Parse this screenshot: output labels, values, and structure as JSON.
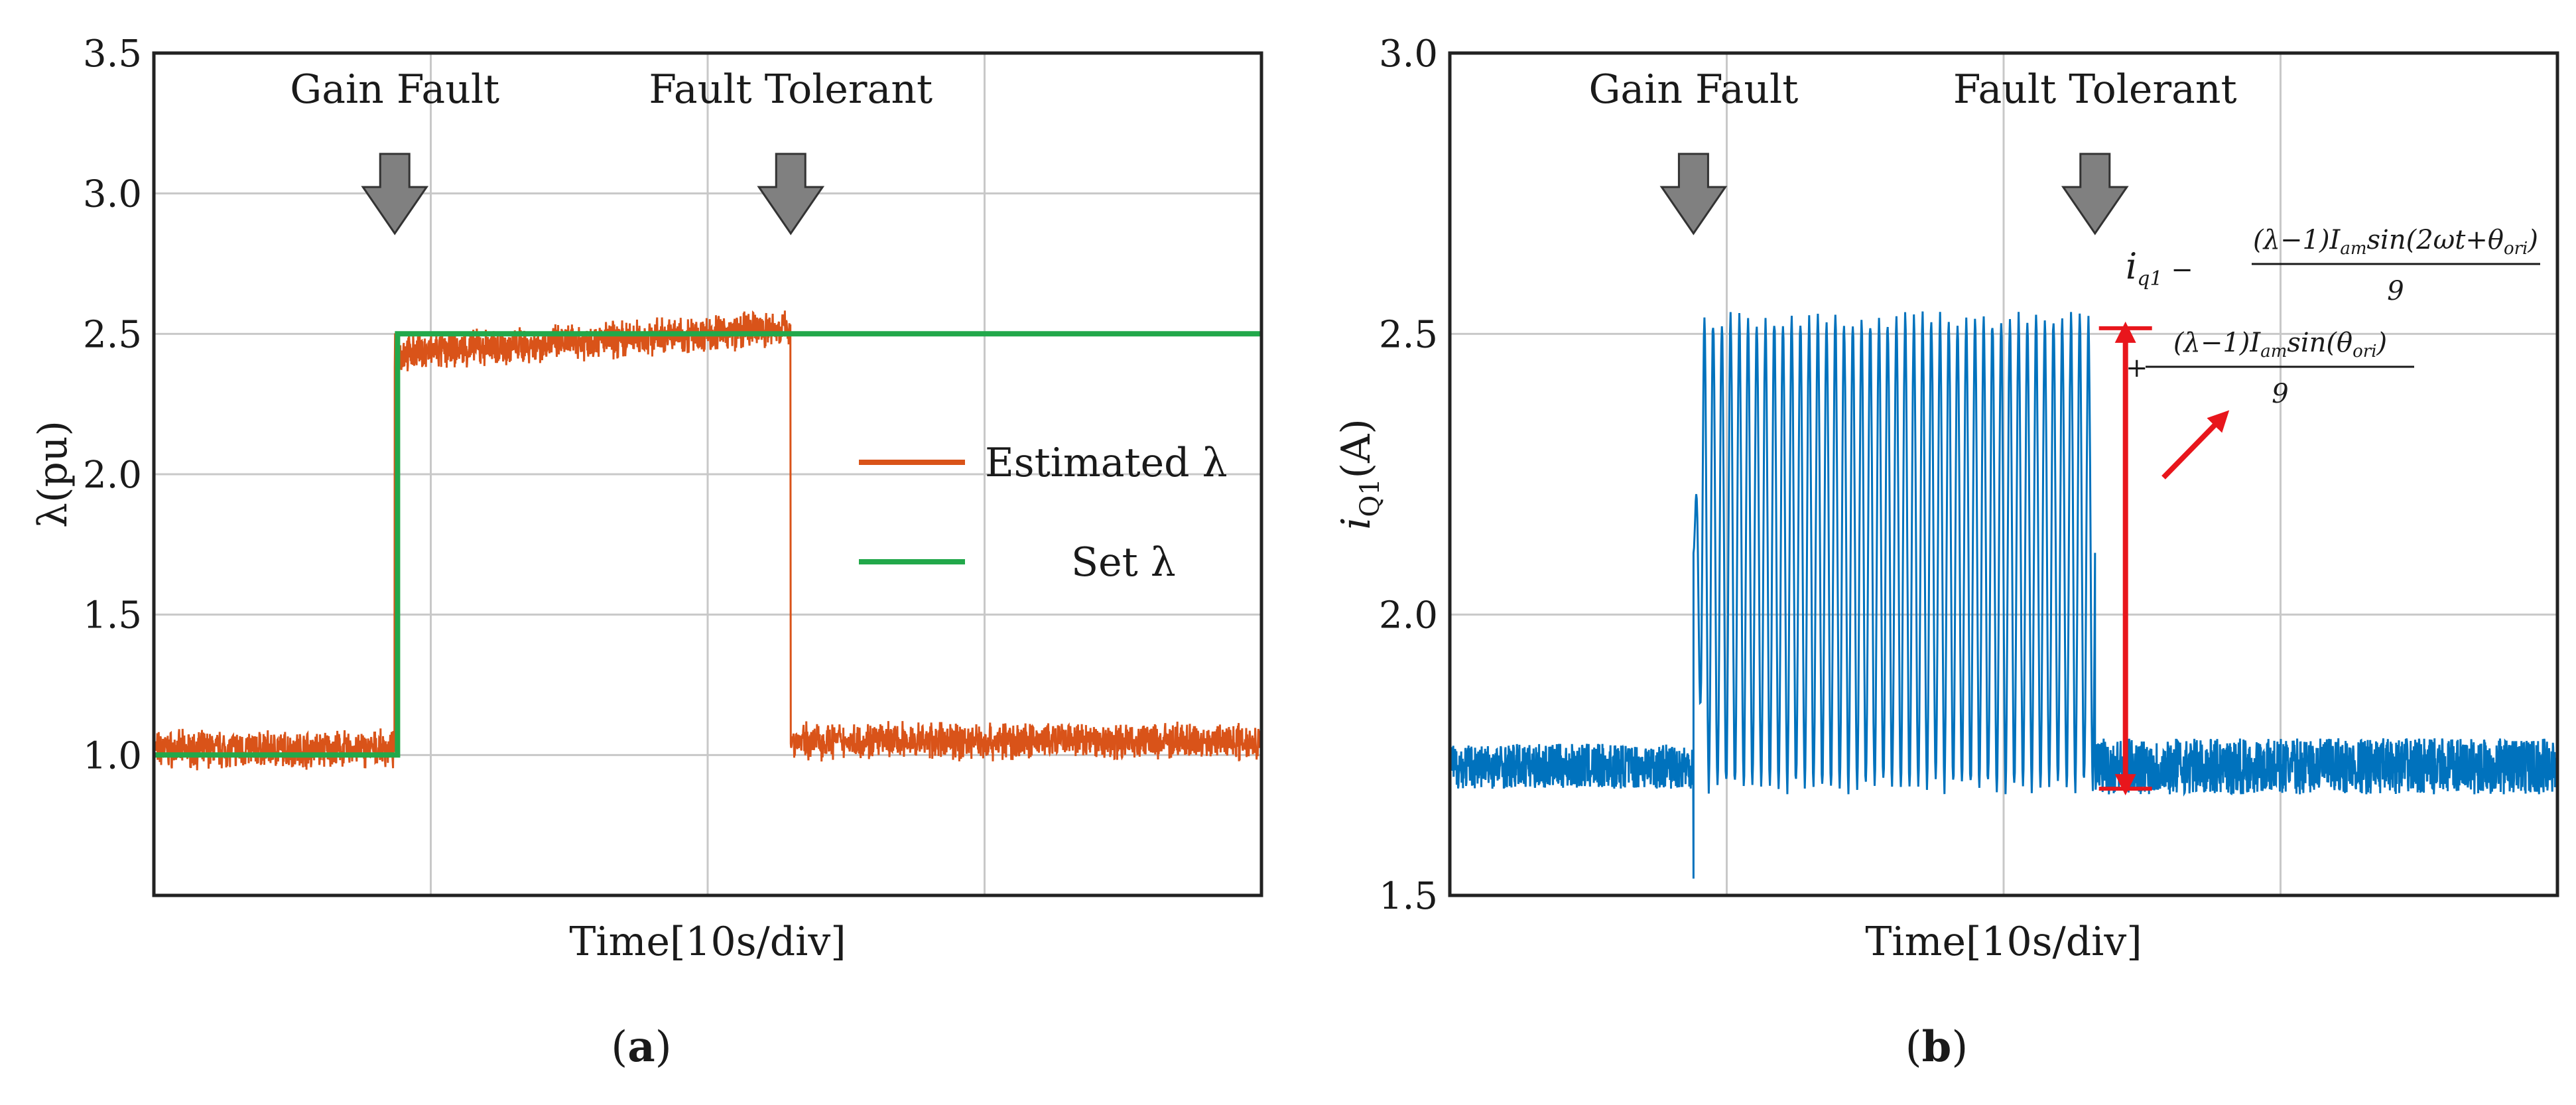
{
  "chart_data": [
    {
      "type": "line",
      "panel_label": "(a)",
      "panel_letter": "a",
      "title": "",
      "xlabel": "Time[10s/div]",
      "ylabel": "λ(pu)",
      "ylim": [
        0.5,
        3.5
      ],
      "xlim": [
        0,
        4
      ],
      "yticks": [
        "1.0",
        "1.5",
        "2.0",
        "2.5",
        "3.0",
        "3.5"
      ],
      "ytick_values": [
        1.0,
        1.5,
        2.0,
        2.5,
        3.0,
        3.5
      ],
      "xgrid": [
        1,
        2,
        3
      ],
      "grid": true,
      "legend_position": "right",
      "annotations": [
        {
          "text": "Gain Fault",
          "x": 0.87,
          "marker": "down-arrow"
        },
        {
          "text": "Fault Tolerant",
          "x": 2.3,
          "marker": "down-arrow"
        }
      ],
      "series": [
        {
          "name": "Estimated λ",
          "legend_label": "Estimated λ",
          "color": "#d95319",
          "segments": [
            {
              "x": [
                0,
                0.87
              ],
              "mean": 1.02,
              "noise": 0.05
            },
            {
              "x": [
                0.87,
                2.3
              ],
              "mean_start": 2.43,
              "mean_end": 2.52,
              "noise": 0.05
            },
            {
              "x": [
                2.3,
                4.0
              ],
              "mean": 1.05,
              "noise": 0.05
            }
          ]
        },
        {
          "name": "Set λ",
          "legend_label": "Set λ",
          "color": "#22a84a",
          "x": [
            0,
            0.88,
            0.88,
            4.0
          ],
          "values": [
            1.0,
            1.0,
            2.5,
            2.5
          ]
        }
      ]
    },
    {
      "type": "line",
      "panel_label": "(b)",
      "panel_letter": "b",
      "title": "",
      "xlabel": "Time[10s/div]",
      "ylabel": "iQ1(A)",
      "ylabel_main": "i",
      "ylabel_sub": "Q1",
      "ylabel_unit": "(A)",
      "ylim": [
        1.5,
        3.0
      ],
      "xlim": [
        0,
        4
      ],
      "yticks": [
        "1.5",
        "2.0",
        "2.5",
        "3.0"
      ],
      "ytick_values": [
        1.5,
        2.0,
        2.5,
        3.0
      ],
      "xgrid": [
        1,
        2,
        3
      ],
      "grid": true,
      "annotations": [
        {
          "text": "Gain Fault",
          "x": 0.88,
          "marker": "down-arrow"
        },
        {
          "text": "Fault Tolerant",
          "x": 2.33,
          "marker": "down-arrow"
        }
      ],
      "amplitude_marker": {
        "x": 2.44,
        "y_top": 2.51,
        "y_bottom": 1.69,
        "color": "#e8161c"
      },
      "formula_line1": {
        "prefix": "i",
        "prefix_sub": "q1",
        "op": " − ",
        "numerator": "(λ−1)I",
        "numerator_sub": "am",
        "numerator_tail": "sin(2ωt+θ",
        "numerator_tail_sub": "ori",
        "numerator_close": ")",
        "denominator": "9"
      },
      "formula_line2": {
        "op": "+",
        "numerator": "(λ−1)I",
        "numerator_sub": "am",
        "numerator_tail": "sin(θ",
        "numerator_tail_sub": "ori",
        "numerator_close": ")",
        "denominator": "9"
      },
      "series": [
        {
          "name": "iQ1",
          "color": "#0072bd",
          "segments": [
            {
              "x": [
                0,
                0.88
              ],
              "mean": 1.73,
              "noise": 0.04
            },
            {
              "x": [
                0.88,
                2.33
              ],
              "oscillation_min": 1.68,
              "oscillation_max": 2.54,
              "cycles": 46
            },
            {
              "x": [
                2.33,
                4.0
              ],
              "mean": 1.73,
              "noise": 0.05
            }
          ],
          "transient_min": 1.53,
          "transient_max": 2.46
        }
      ]
    }
  ]
}
